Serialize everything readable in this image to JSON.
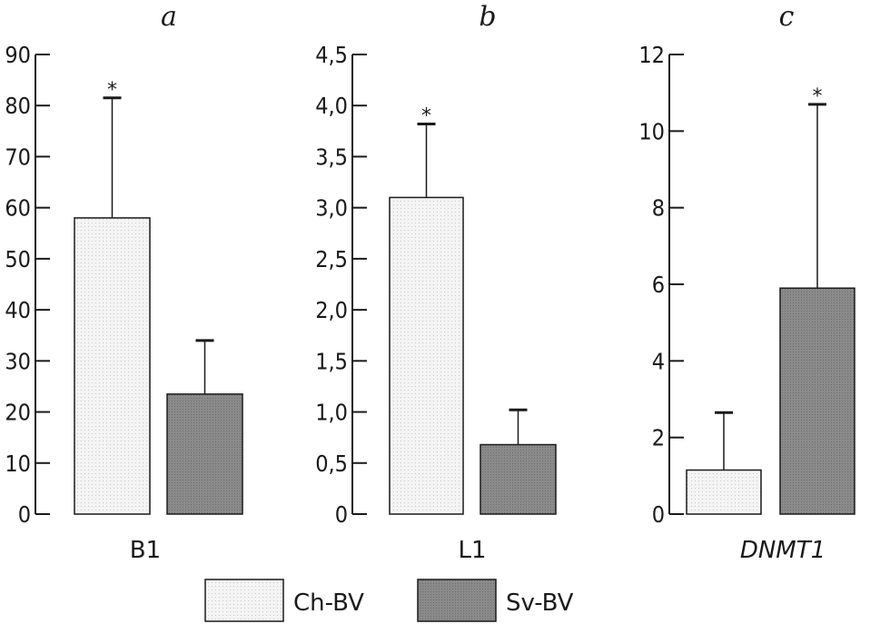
{
  "colors": {
    "ch_bv": "#f3f3f3",
    "sv_bv": "#8c8c8c",
    "axis": "#1a1a1a"
  },
  "chart_data": [
    {
      "type": "bar",
      "panel": "a",
      "categories": [
        "B1"
      ],
      "xlabel": "B1",
      "ylim": [
        0,
        90
      ],
      "yticks": [
        0,
        10,
        20,
        30,
        40,
        50,
        60,
        70,
        80,
        90
      ],
      "ytick_labels": [
        "0",
        "10",
        "20",
        "30",
        "40",
        "50",
        "60",
        "70",
        "80",
        "90"
      ],
      "series": [
        {
          "name": "Ch-BV",
          "value": 58,
          "error": 23.5,
          "significant": true
        },
        {
          "name": "Sv-BV",
          "value": 23.5,
          "error": 10.5,
          "significant": false
        }
      ]
    },
    {
      "type": "bar",
      "panel": "b",
      "categories": [
        "L1"
      ],
      "xlabel": "L1",
      "ylim": [
        0,
        4.5
      ],
      "yticks": [
        0,
        0.5,
        1.0,
        1.5,
        2.0,
        2.5,
        3.0,
        3.5,
        4.0,
        4.5
      ],
      "ytick_labels": [
        "0",
        "0,5",
        "1,0",
        "1,5",
        "2,0",
        "2,5",
        "3,0",
        "3,5",
        "4,0",
        "4,5"
      ],
      "series": [
        {
          "name": "Ch-BV",
          "value": 3.1,
          "error": 0.72,
          "significant": true
        },
        {
          "name": "Sv-BV",
          "value": 0.68,
          "error": 0.34,
          "significant": false
        }
      ]
    },
    {
      "type": "bar",
      "panel": "c",
      "categories": [
        "DNMT1"
      ],
      "xlabel": "DNMT1",
      "xlabel_italic": true,
      "ylim": [
        0,
        12
      ],
      "yticks": [
        0,
        2,
        4,
        6,
        8,
        10,
        12
      ],
      "ytick_labels": [
        "0",
        "2",
        "4",
        "6",
        "8",
        "10",
        "12"
      ],
      "series": [
        {
          "name": "Ch-BV",
          "value": 1.15,
          "error": 1.5,
          "significant": false
        },
        {
          "name": "Sv-BV",
          "value": 5.9,
          "error": 4.8,
          "significant": true
        }
      ]
    }
  ],
  "legend": [
    {
      "name": "Ch-BV"
    },
    {
      "name": "Sv-BV"
    }
  ],
  "significance_marker": "*"
}
